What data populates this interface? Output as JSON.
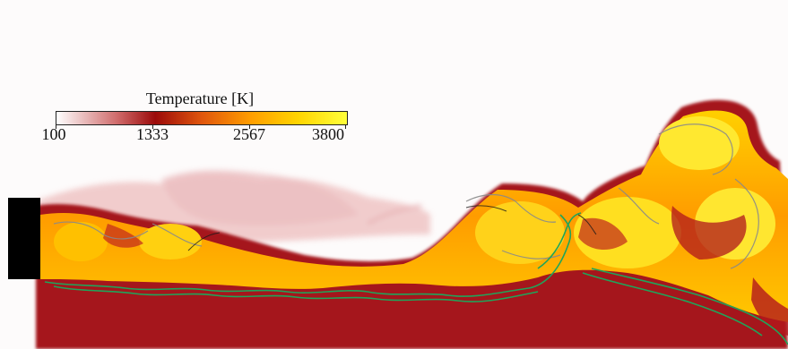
{
  "legend": {
    "title": "Temperature [K]",
    "ticks": [
      "100",
      "1333",
      "2567",
      "3800"
    ],
    "colors": [
      "#ffffff",
      "#cf6a6a",
      "#9b0a0a",
      "#e0560d",
      "#ff9e00",
      "#ffd400",
      "#ffff3a"
    ]
  },
  "image": {
    "description_colors": {
      "background": "#fdfbfb",
      "injector": "#000000",
      "flame_contour": "#1fa55a",
      "iso_line": "#8a8a8a"
    }
  }
}
